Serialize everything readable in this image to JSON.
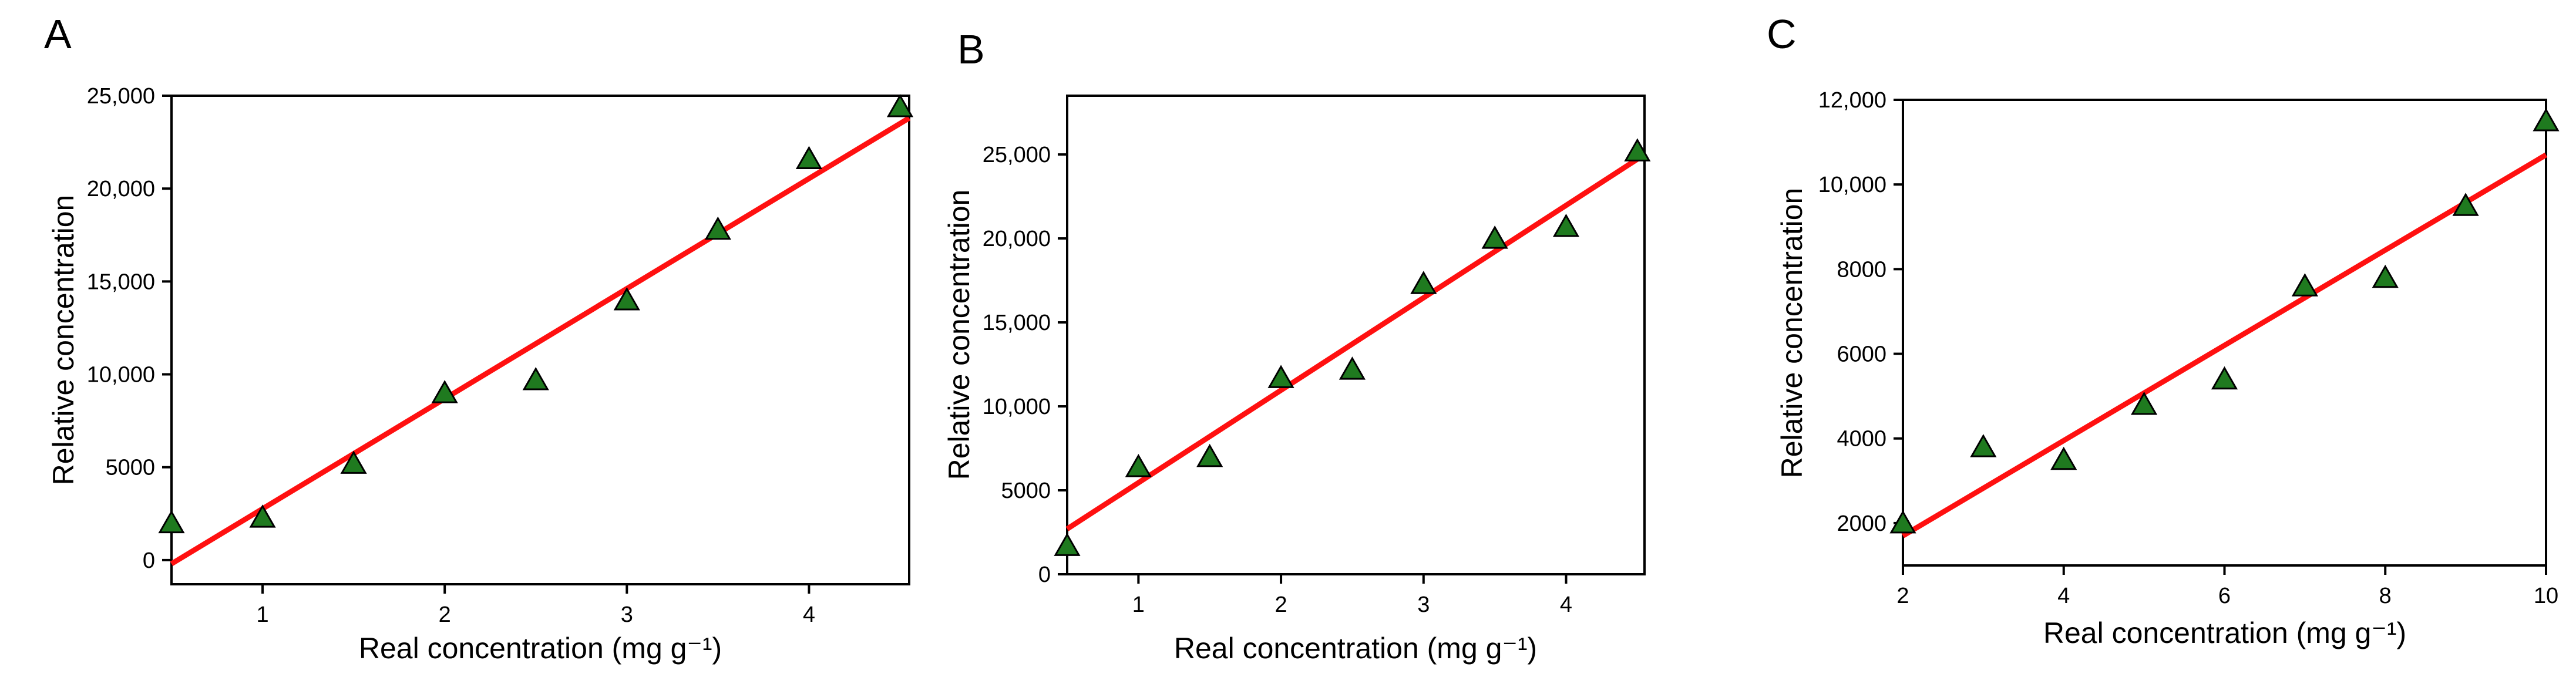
{
  "chart_data": [
    {
      "panel": "A",
      "type": "scatter",
      "xlabel": "Real concentration (mg g⁻¹)",
      "ylabel": "Relative concentration",
      "xlim": [
        0.5,
        4.55
      ],
      "ylim": [
        -1300,
        25000
      ],
      "xticks": [
        1,
        2,
        3,
        4
      ],
      "xtick_labels": [
        "1",
        "2",
        "3",
        "4"
      ],
      "yticks": [
        0,
        5000,
        10000,
        15000,
        20000,
        25000
      ],
      "ytick_labels": [
        "0",
        "5000",
        "10,000",
        "15,000",
        "20,000",
        "25,000"
      ],
      "x": [
        0.5,
        1.0,
        1.5,
        2.0,
        2.5,
        3.0,
        3.5,
        4.0,
        4.5
      ],
      "y": [
        2000,
        2300,
        5200,
        9000,
        9700,
        14000,
        17800,
        21600,
        24400
      ],
      "fit": {
        "x": [
          0.5,
          4.55
        ],
        "y": [
          -200,
          23800
        ]
      }
    },
    {
      "panel": "B",
      "type": "scatter",
      "xlabel": "Real concentration (mg g⁻¹)",
      "ylabel": "Relative concentration",
      "xlim": [
        0.5,
        4.55
      ],
      "ylim": [
        0,
        28500
      ],
      "xticks": [
        1,
        2,
        3,
        4
      ],
      "xtick_labels": [
        "1",
        "2",
        "3",
        "4"
      ],
      "yticks": [
        0,
        5000,
        10000,
        15000,
        20000,
        25000
      ],
      "ytick_labels": [
        "0",
        "5000",
        "10,000",
        "15,000",
        "20,000",
        "25,000"
      ],
      "x": [
        0.5,
        1.0,
        1.5,
        2.0,
        2.5,
        3.0,
        3.5,
        4.0,
        4.5
      ],
      "y": [
        1700,
        6400,
        7000,
        11700,
        12200,
        17300,
        20000,
        20700,
        25200
      ],
      "fit": {
        "x": [
          0.5,
          4.55
        ],
        "y": [
          2700,
          25000
        ]
      }
    },
    {
      "panel": "C",
      "type": "scatter",
      "xlabel": "Real concentration (mg g⁻¹)",
      "ylabel": "Relative concentration",
      "xlim": [
        2,
        10
      ],
      "ylim": [
        1000,
        12000
      ],
      "xticks": [
        2,
        4,
        6,
        8,
        10
      ],
      "xtick_labels": [
        "2",
        "4",
        "6",
        "8",
        "10"
      ],
      "yticks": [
        2000,
        4000,
        6000,
        8000,
        10000,
        12000
      ],
      "ytick_labels": [
        "2000",
        "4000",
        "6000",
        "8000",
        "10,000",
        "12,000"
      ],
      "x": [
        2,
        3,
        4,
        5,
        6,
        7,
        8,
        9,
        10
      ],
      "y": [
        2000,
        3800,
        3500,
        4800,
        5400,
        7600,
        7800,
        9500,
        11500
      ],
      "fit": {
        "x": [
          2,
          10
        ],
        "y": [
          1700,
          10700
        ]
      }
    }
  ]
}
